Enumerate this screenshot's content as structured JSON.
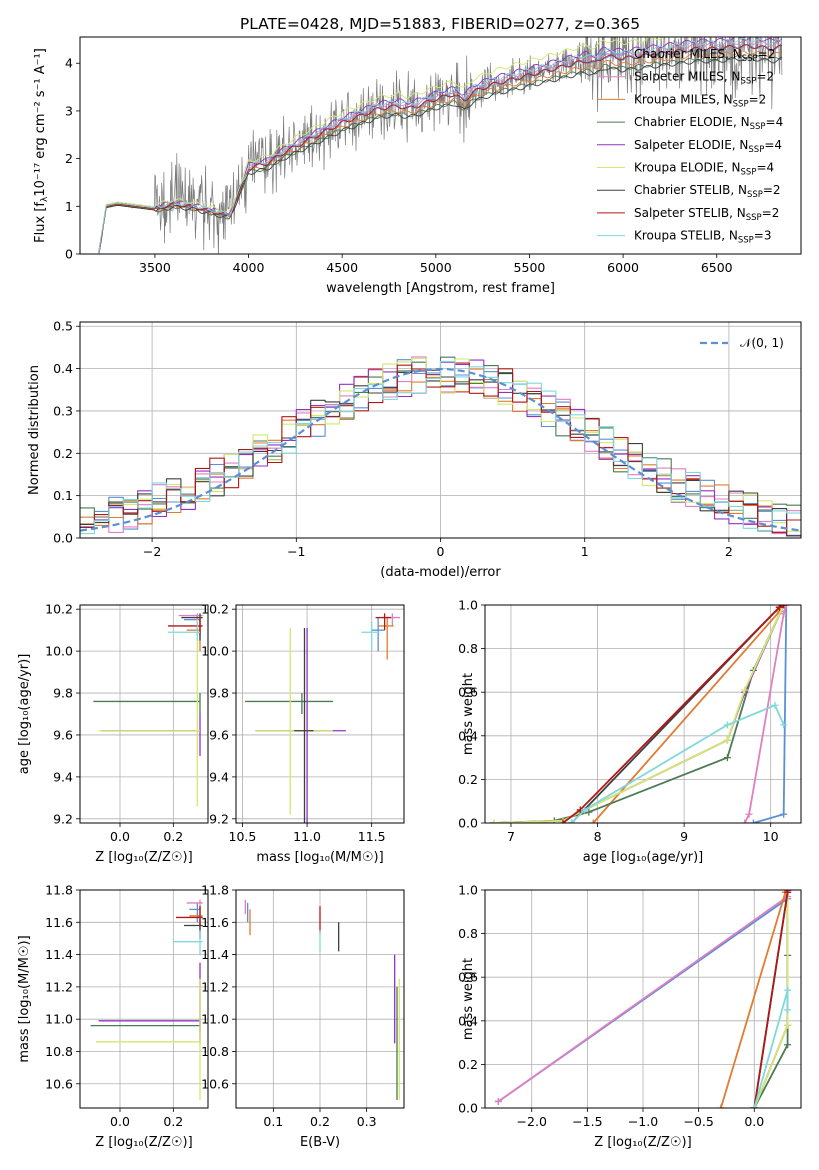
{
  "figure_title": "PLATE=0428, MJD=51883, FIBERID=0277, z=0.365",
  "colors": {
    "chabrier_miles": "#5b8fd6",
    "salpeter_miles": "#e07fc4",
    "kroupa_miles": "#e07b30",
    "chabrier_elodie": "#4c7a52",
    "salpeter_elodie": "#9630c4",
    "kroupa_elodie": "#d2e86e",
    "chabrier_stelib": "#3f3f3f",
    "salpeter_stelib": "#b01818",
    "kroupa_stelib": "#7fd8dc",
    "data": "#7a7a7a",
    "normal": "#5b8fd6"
  },
  "legend_models": [
    {
      "key": "chabrier_miles",
      "name": "Chabrier MILES, N",
      "sub": "SSP",
      "tail": "=2"
    },
    {
      "key": "salpeter_miles",
      "name": "Salpeter MILES, N",
      "sub": "SSP",
      "tail": "=2"
    },
    {
      "key": "kroupa_miles",
      "name": "Kroupa MILES, N",
      "sub": "SSP",
      "tail": "=2"
    },
    {
      "key": "chabrier_elodie",
      "name": "Chabrier ELODIE, N",
      "sub": "SSP",
      "tail": "=4"
    },
    {
      "key": "salpeter_elodie",
      "name": "Salpeter ELODIE, N",
      "sub": "SSP",
      "tail": "=4"
    },
    {
      "key": "kroupa_elodie",
      "name": "Kroupa ELODIE, N",
      "sub": "SSP",
      "tail": "=4"
    },
    {
      "key": "chabrier_stelib",
      "name": "Chabrier STELIB, N",
      "sub": "SSP",
      "tail": "=2"
    },
    {
      "key": "salpeter_stelib",
      "name": "Salpeter STELIB, N",
      "sub": "SSP",
      "tail": "=2"
    },
    {
      "key": "kroupa_stelib",
      "name": "Kroupa STELIB, N",
      "sub": "SSP",
      "tail": "=3"
    }
  ],
  "chart_data": [
    {
      "id": "spectrum",
      "type": "line",
      "xlabel": "wavelength [Angstrom, rest frame]",
      "ylabel": "Flux [f",
      "ylabel_sub": "λ",
      "ylabel_tail": "10⁻¹⁷ erg cm⁻² s⁻¹ A⁻¹]",
      "xlim": [
        3100,
        6950
      ],
      "ylim": [
        0,
        4.55
      ],
      "xticks": [
        3500,
        4000,
        4500,
        5000,
        5500,
        6000,
        6500
      ],
      "yticks": [
        0,
        1,
        2,
        3,
        4
      ],
      "continuum": {
        "x": [
          3200,
          3220,
          3240,
          3300,
          3400,
          3500,
          3600,
          3700,
          3750,
          3800,
          3850,
          3900,
          3950,
          4000,
          4050,
          4100,
          4200,
          4300,
          4400,
          4500,
          4600,
          4700,
          4800,
          4850,
          4900,
          5000,
          5100,
          5150,
          5200,
          5300,
          5400,
          5500,
          5600,
          5700,
          5800,
          5850,
          5900,
          6000,
          6100,
          6200,
          6300,
          6400,
          6500,
          6600,
          6700,
          6800,
          6850
        ],
        "y": [
          0.0,
          0.5,
          1.0,
          1.05,
          1.0,
          0.95,
          1.05,
          1.0,
          0.95,
          0.9,
          0.85,
          0.8,
          1.3,
          1.8,
          1.85,
          1.9,
          2.15,
          2.35,
          2.55,
          2.75,
          2.9,
          3.05,
          3.1,
          3.05,
          3.1,
          3.25,
          3.35,
          3.2,
          3.4,
          3.55,
          3.65,
          3.75,
          3.85,
          3.95,
          4.05,
          4.0,
          4.15,
          4.1,
          4.15,
          4.2,
          4.25,
          4.3,
          4.3,
          4.35,
          4.35,
          4.3,
          4.35
        ]
      },
      "model_offsets": [
        0.0,
        0.02,
        -0.03,
        -0.05,
        0.04,
        0.08,
        -0.06,
        0.0,
        0.03
      ],
      "data_noise_note": ""
    },
    {
      "id": "residuals",
      "type": "line",
      "xlabel": "(data-model)/error",
      "ylabel": "Normed distribution",
      "xlim": [
        -2.5,
        2.5
      ],
      "ylim": [
        0,
        0.51
      ],
      "xticks": [
        -2,
        -1,
        0,
        1,
        2
      ],
      "xticklabels": [
        "−2",
        "−1",
        "0",
        "1",
        "2"
      ],
      "yticks": [
        0.0,
        0.1,
        0.2,
        0.3,
        0.4,
        0.5
      ],
      "yticklabels": [
        "0.0",
        "0.1",
        "0.2",
        "0.3",
        "0.4",
        "0.5"
      ],
      "normal_label": "𝒩(0, 1)",
      "bin_width": 0.1
    },
    {
      "id": "age_vs_Z",
      "type": "scatter",
      "xlabel": "Z [log₁₀(Z/Z☉)]",
      "ylabel": "age  [log₁₀(age/yr)]",
      "xlim": [
        -0.15,
        0.33
      ],
      "ylim": [
        9.18,
        10.22
      ],
      "xticks": [
        0.0,
        0.2
      ],
      "xticklabels": [
        "0.0",
        "0.2"
      ],
      "yticks": [
        9.2,
        9.4,
        9.6,
        9.8,
        10.0,
        10.2
      ],
      "yticklabels": [
        "9.2",
        "9.4",
        "9.6",
        "9.8",
        "10.0",
        "10.2"
      ],
      "errorbars": [
        {
          "c": "chabrier_miles",
          "x": 0.29,
          "y": 10.15,
          "xlo": 0.24,
          "xhi": 0.3,
          "ylo": 10.1,
          "yhi": 10.17
        },
        {
          "c": "salpeter_miles",
          "x": 0.29,
          "y": 10.17,
          "xlo": 0.22,
          "xhi": 0.31,
          "ylo": 10.12,
          "yhi": 10.18
        },
        {
          "c": "kroupa_miles",
          "x": 0.3,
          "y": 10.1,
          "xlo": 0.25,
          "xhi": 0.3,
          "ylo": 10.0,
          "yhi": 10.15
        },
        {
          "c": "chabrier_elodie",
          "x": 0.3,
          "y": 9.76,
          "xlo": -0.1,
          "xhi": 0.3,
          "ylo": 9.7,
          "yhi": 9.8
        },
        {
          "c": "salpeter_elodie",
          "x": 0.3,
          "y": 9.62,
          "xlo": -0.07,
          "xhi": 0.3,
          "ylo": 9.5,
          "yhi": 9.7
        },
        {
          "c": "kroupa_elodie",
          "x": 0.29,
          "y": 9.62,
          "xlo": -0.08,
          "xhi": 0.3,
          "ylo": 9.26,
          "yhi": 10.15
        },
        {
          "c": "chabrier_stelib",
          "x": 0.3,
          "y": 10.16,
          "xlo": 0.23,
          "xhi": 0.31,
          "ylo": 10.05,
          "yhi": 10.18
        },
        {
          "c": "salpeter_stelib",
          "x": 0.3,
          "y": 10.12,
          "xlo": 0.18,
          "xhi": 0.31,
          "ylo": 10.08,
          "yhi": 10.16
        },
        {
          "c": "kroupa_stelib",
          "x": 0.29,
          "y": 10.09,
          "xlo": 0.18,
          "xhi": 0.3,
          "ylo": 10.05,
          "yhi": 10.14
        }
      ]
    },
    {
      "id": "age_vs_mass",
      "type": "scatter",
      "xlabel": "mass [log₁₀(M/M☉)]",
      "ylabel": "",
      "xlim": [
        10.45,
        11.75
      ],
      "ylim": [
        9.18,
        10.22
      ],
      "xticks": [
        10.5,
        11.0,
        11.5
      ],
      "xticklabels": [
        "10.5",
        "11.0",
        "11.5"
      ],
      "yticks": [
        9.2,
        9.4,
        9.6,
        9.8,
        10.0,
        10.2
      ],
      "yticklabels": [
        "9.2",
        "9.4",
        "9.6",
        "9.8",
        "10.0",
        "10.2"
      ],
      "errorbars": [
        {
          "c": "chabrier_miles",
          "x": 11.55,
          "y": 10.1,
          "xlo": 11.5,
          "xhi": 11.6,
          "ylo": 10.0,
          "yhi": 10.16
        },
        {
          "c": "salpeter_miles",
          "x": 11.66,
          "y": 10.16,
          "xlo": 11.58,
          "xhi": 11.72,
          "ylo": 10.12,
          "yhi": 10.18
        },
        {
          "c": "kroupa_miles",
          "x": 11.62,
          "y": 10.12,
          "xlo": 11.55,
          "xhi": 11.67,
          "ylo": 9.96,
          "yhi": 10.16
        },
        {
          "c": "chabrier_elodie",
          "x": 10.96,
          "y": 9.76,
          "xlo": 10.52,
          "xhi": 11.2,
          "ylo": 9.7,
          "yhi": 9.8
        },
        {
          "c": "salpeter_elodie",
          "x": 11.0,
          "y": 9.62,
          "xlo": 10.6,
          "xhi": 11.3,
          "ylo": 8.9,
          "yhi": 10.11
        },
        {
          "c": "kroupa_elodie",
          "x": 10.87,
          "y": 9.62,
          "xlo": 10.6,
          "xhi": 11.2,
          "ylo": 9.22,
          "yhi": 10.11
        },
        {
          "c": "chabrier_stelib",
          "x": 10.98,
          "y": 9.62,
          "xlo": 10.9,
          "xhi": 11.05,
          "ylo": 8.95,
          "yhi": 10.11
        },
        {
          "c": "salpeter_stelib",
          "x": 11.6,
          "y": 10.16,
          "xlo": 11.53,
          "xhi": 11.65,
          "ylo": 10.1,
          "yhi": 10.18
        },
        {
          "c": "kroupa_stelib",
          "x": 11.5,
          "y": 10.09,
          "xlo": 11.42,
          "xhi": 11.56,
          "ylo": 10.0,
          "yhi": 10.14
        }
      ]
    },
    {
      "id": "cum_age",
      "type": "line",
      "xlabel": "age  [log₁₀(age/yr)]",
      "ylabel": "mass weight",
      "xlim": [
        6.7,
        10.35
      ],
      "ylim": [
        0,
        1
      ],
      "xticks": [
        7,
        8,
        9,
        10
      ],
      "xticklabels": [
        "7",
        "8",
        "9",
        "10"
      ],
      "yticks": [
        0,
        0.2,
        0.4,
        0.6,
        0.8,
        1.0
      ],
      "yticklabels": [
        "0.0",
        "0.2",
        "0.4",
        "0.6",
        "0.8",
        "1.0"
      ],
      "lines": [
        {
          "c": "chabrier_miles",
          "x": [
            9.8,
            10.15,
            10.18
          ],
          "y": [
            0.0,
            0.04,
            1.0
          ]
        },
        {
          "c": "salpeter_miles",
          "x": [
            9.7,
            9.75,
            10.15,
            10.18
          ],
          "y": [
            0.0,
            0.04,
            0.96,
            1.0
          ]
        },
        {
          "c": "kroupa_miles",
          "x": [
            7.95,
            10.1,
            10.15
          ],
          "y": [
            0.0,
            0.97,
            1.0
          ]
        },
        {
          "c": "chabrier_elodie",
          "x": [
            6.8,
            7.5,
            7.9,
            9.5,
            9.8,
            10.15
          ],
          "y": [
            0.0,
            0.01,
            0.05,
            0.3,
            0.7,
            1.0
          ]
        },
        {
          "c": "salpeter_elodie",
          "x": [
            6.8,
            7.6,
            7.8,
            9.5,
            9.7,
            10.15
          ],
          "y": [
            0.0,
            0.01,
            0.05,
            0.38,
            0.6,
            1.0
          ]
        },
        {
          "c": "kroupa_elodie",
          "x": [
            6.8,
            7.6,
            7.8,
            9.5,
            9.7,
            10.15
          ],
          "y": [
            0.0,
            0.01,
            0.05,
            0.38,
            0.61,
            1.0
          ]
        },
        {
          "c": "chabrier_stelib",
          "x": [
            7.7,
            10.1,
            10.15
          ],
          "y": [
            0.0,
            0.99,
            1.0
          ]
        },
        {
          "c": "salpeter_stelib",
          "x": [
            7.6,
            7.8,
            10.1,
            10.15
          ],
          "y": [
            0.0,
            0.06,
            0.99,
            1.0
          ]
        },
        {
          "c": "kroupa_stelib",
          "x": [
            7.7,
            7.85,
            9.5,
            10.05,
            10.15
          ],
          "y": [
            0.0,
            0.06,
            0.45,
            0.54,
            0.45
          ]
        }
      ]
    },
    {
      "id": "mass_vs_Z",
      "type": "scatter",
      "xlabel": "Z [log₁₀(Z/Z☉)]",
      "ylabel": "mass [log₁₀(M/M☉)]",
      "xlim": [
        -0.15,
        0.33
      ],
      "ylim": [
        10.45,
        11.8
      ],
      "xticks": [
        0.0,
        0.2
      ],
      "xticklabels": [
        "0.0",
        "0.2"
      ],
      "yticks": [
        10.6,
        10.8,
        11.0,
        11.2,
        11.4,
        11.6,
        11.8
      ],
      "yticklabels": [
        "10.6",
        "10.8",
        "11.0",
        "11.2",
        "11.4",
        "11.6",
        "11.8"
      ],
      "errorbars": [
        {
          "c": "chabrier_miles",
          "x": 0.29,
          "y": 11.68,
          "xlo": 0.26,
          "xhi": 0.3,
          "ylo": 11.6,
          "yhi": 11.72
        },
        {
          "c": "salpeter_miles",
          "x": 0.3,
          "y": 11.72,
          "xlo": 0.25,
          "xhi": 0.31,
          "ylo": 11.65,
          "yhi": 11.74
        },
        {
          "c": "kroupa_miles",
          "x": 0.3,
          "y": 11.64,
          "xlo": 0.26,
          "xhi": 0.31,
          "ylo": 11.55,
          "yhi": 11.7
        },
        {
          "c": "chabrier_elodie",
          "x": 0.3,
          "y": 10.96,
          "xlo": -0.11,
          "xhi": 0.3,
          "ylo": 10.92,
          "yhi": 11.0
        },
        {
          "c": "salpeter_elodie",
          "x": 0.3,
          "y": 10.99,
          "xlo": -0.08,
          "xhi": 0.3,
          "ylo": 10.85,
          "yhi": 11.35
        },
        {
          "c": "kroupa_elodie",
          "x": 0.3,
          "y": 10.86,
          "xlo": -0.09,
          "xhi": 0.3,
          "ylo": 10.5,
          "yhi": 11.25
        },
        {
          "c": "chabrier_stelib",
          "x": 0.3,
          "y": 11.58,
          "xlo": 0.24,
          "xhi": 0.31,
          "ylo": 11.5,
          "yhi": 11.62
        },
        {
          "c": "salpeter_stelib",
          "x": 0.3,
          "y": 11.63,
          "xlo": 0.21,
          "xhi": 0.31,
          "ylo": 11.58,
          "yhi": 11.7
        },
        {
          "c": "kroupa_stelib",
          "x": 0.3,
          "y": 11.48,
          "xlo": 0.2,
          "xhi": 0.31,
          "ylo": 11.4,
          "yhi": 11.55
        }
      ]
    },
    {
      "id": "mass_vs_ebv",
      "type": "scatter",
      "xlabel": "E(B-V)",
      "ylabel": "",
      "xlim": [
        0.02,
        0.38
      ],
      "ylim": [
        10.45,
        11.8
      ],
      "xticks": [
        0.1,
        0.2,
        0.3
      ],
      "xticklabels": [
        "0.1",
        "0.2",
        "0.3"
      ],
      "yticks": [
        10.6,
        10.8,
        11.0,
        11.2,
        11.4,
        11.6,
        11.8
      ],
      "yticklabels": [
        "10.6",
        "10.8",
        "11.0",
        "11.2",
        "11.4",
        "11.6",
        "11.8"
      ],
      "errorbars": [
        {
          "c": "chabrier_miles",
          "x": 0.045,
          "y": 11.68,
          "xlo": 0.045,
          "xhi": 0.045,
          "ylo": 11.6,
          "yhi": 11.72
        },
        {
          "c": "salpeter_miles",
          "x": 0.04,
          "y": 11.72,
          "xlo": 0.04,
          "xhi": 0.04,
          "ylo": 11.65,
          "yhi": 11.74
        },
        {
          "c": "kroupa_miles",
          "x": 0.05,
          "y": 11.6,
          "xlo": 0.05,
          "xhi": 0.05,
          "ylo": 11.52,
          "yhi": 11.68
        },
        {
          "c": "chabrier_elodie",
          "x": 0.365,
          "y": 10.96,
          "xlo": 0.365,
          "xhi": 0.365,
          "ylo": 10.5,
          "yhi": 11.2
        },
        {
          "c": "salpeter_elodie",
          "x": 0.36,
          "y": 10.99,
          "xlo": 0.36,
          "xhi": 0.36,
          "ylo": 10.85,
          "yhi": 11.4
        },
        {
          "c": "kroupa_elodie",
          "x": 0.37,
          "y": 10.86,
          "xlo": 0.37,
          "xhi": 0.37,
          "ylo": 10.5,
          "yhi": 11.25
        },
        {
          "c": "chabrier_stelib",
          "x": 0.24,
          "y": 11.5,
          "xlo": 0.24,
          "xhi": 0.24,
          "ylo": 11.42,
          "yhi": 11.6
        },
        {
          "c": "salpeter_stelib",
          "x": 0.2,
          "y": 11.6,
          "xlo": 0.2,
          "xhi": 0.2,
          "ylo": 11.53,
          "yhi": 11.7
        },
        {
          "c": "kroupa_stelib",
          "x": 0.2,
          "y": 11.48,
          "xlo": 0.2,
          "xhi": 0.2,
          "ylo": 11.42,
          "yhi": 11.55
        }
      ]
    },
    {
      "id": "cum_Z",
      "type": "line",
      "xlabel": "Z [log₁₀(Z/Z☉)]",
      "ylabel": "mass weight",
      "xlim": [
        -2.42,
        0.42
      ],
      "ylim": [
        0,
        1
      ],
      "xticks": [
        -2.0,
        -1.5,
        -1.0,
        -0.5,
        0.0
      ],
      "xticklabels": [
        "−2.0",
        "−1.5",
        "−1.0",
        "−0.5",
        "0.0"
      ],
      "yticks": [
        0,
        0.2,
        0.4,
        0.6,
        0.8,
        1.0
      ],
      "yticklabels": [
        "0.0",
        "0.2",
        "0.4",
        "0.6",
        "0.8",
        "1.0"
      ],
      "lines": [
        {
          "c": "chabrier_miles",
          "x": [
            -2.3,
            0.3,
            0.3
          ],
          "y": [
            0.03,
            0.96,
            1.0
          ]
        },
        {
          "c": "salpeter_miles",
          "x": [
            -2.3,
            0.3,
            0.3
          ],
          "y": [
            0.03,
            0.97,
            1.0
          ]
        },
        {
          "c": "kroupa_miles",
          "x": [
            -0.3,
            0.28,
            0.3
          ],
          "y": [
            0.0,
            0.99,
            1.0
          ]
        },
        {
          "c": "chabrier_elodie",
          "x": [
            0.0,
            0.3,
            0.3,
            0.3
          ],
          "y": [
            0.0,
            0.29,
            0.7,
            1.0
          ]
        },
        {
          "c": "salpeter_elodie",
          "x": [
            0.0,
            0.3,
            0.3
          ],
          "y": [
            0.0,
            0.38,
            1.0
          ]
        },
        {
          "c": "kroupa_elodie",
          "x": [
            0.0,
            0.3,
            0.3
          ],
          "y": [
            0.0,
            0.38,
            1.0
          ]
        },
        {
          "c": "chabrier_stelib",
          "x": [
            0.0,
            0.3,
            0.3
          ],
          "y": [
            0.0,
            0.99,
            1.0
          ]
        },
        {
          "c": "salpeter_stelib",
          "x": [
            0.0,
            0.3,
            0.3
          ],
          "y": [
            0.0,
            0.99,
            1.0
          ]
        },
        {
          "c": "kroupa_stelib",
          "x": [
            0.0,
            0.3,
            0.3
          ],
          "y": [
            0.0,
            0.54,
            0.45
          ]
        }
      ]
    }
  ]
}
